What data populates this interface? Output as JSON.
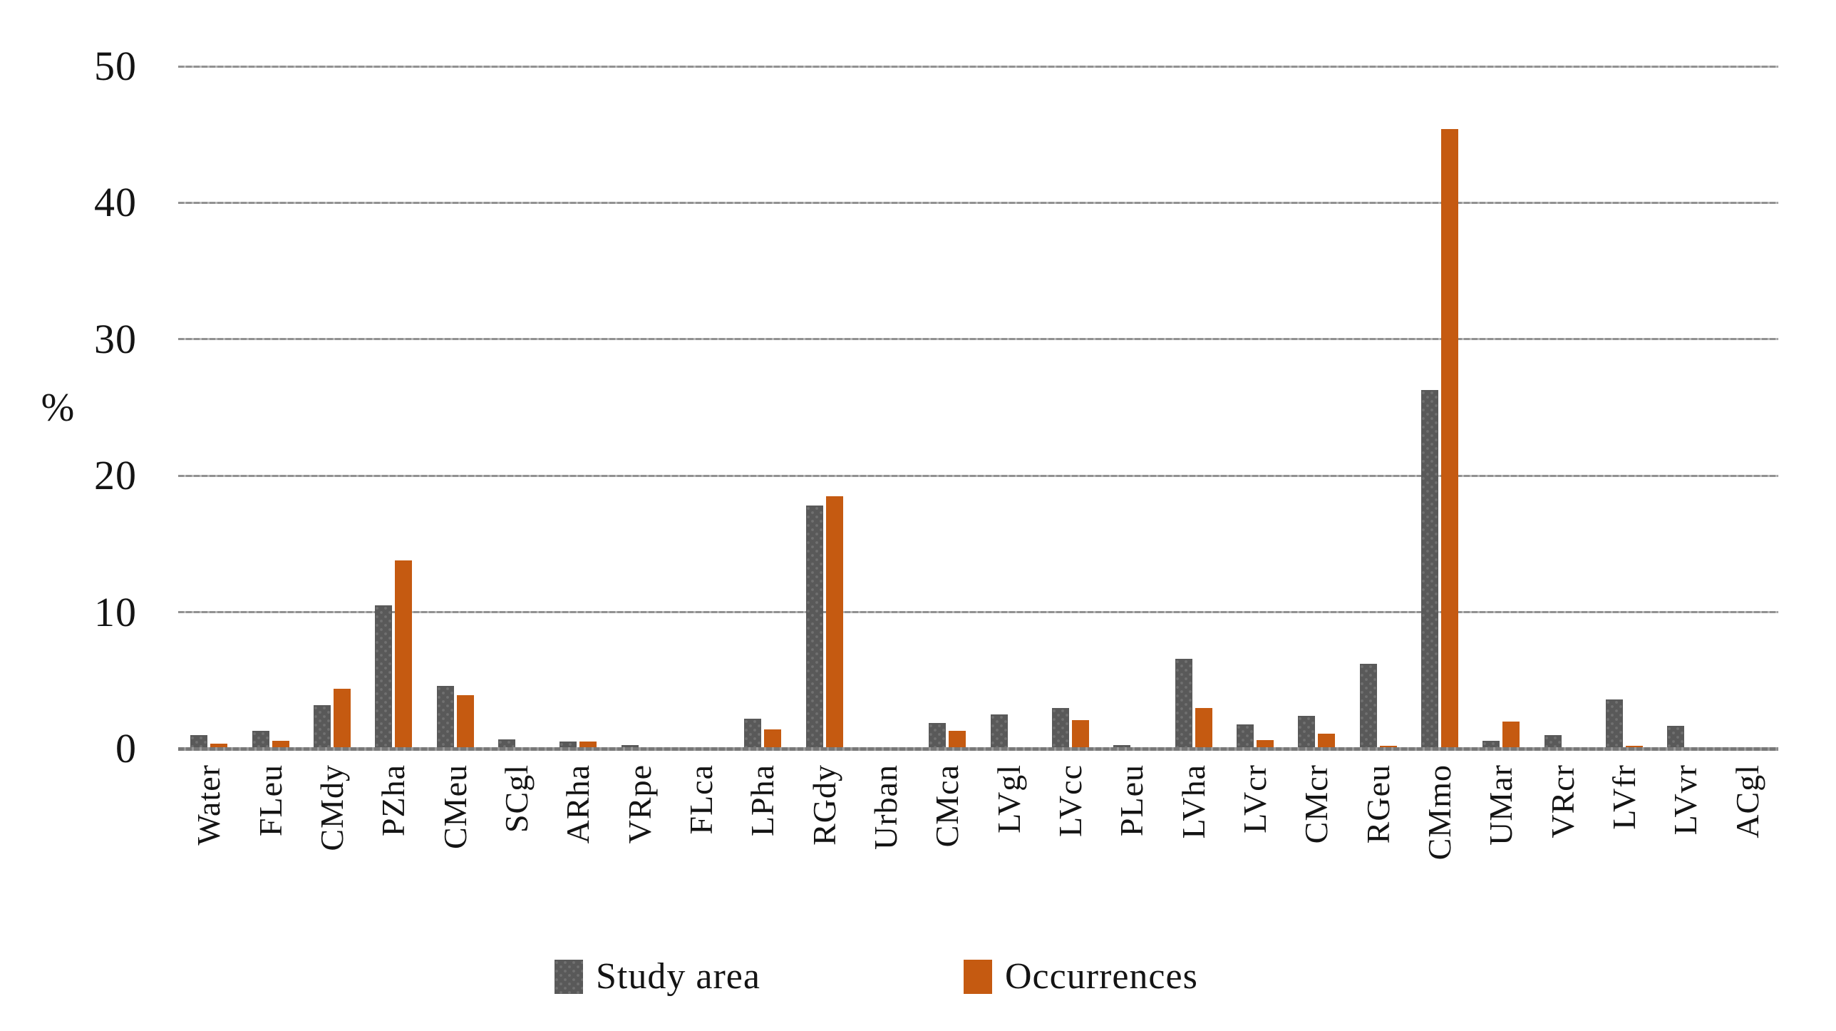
{
  "chart_data": {
    "type": "bar",
    "title": "",
    "ylabel": "%",
    "xlabel": "",
    "ylim": [
      0,
      50
    ],
    "yticks": [
      0,
      10,
      20,
      30,
      40,
      50
    ],
    "grid": "horizontal",
    "legend_position": "bottom",
    "categories": [
      "Water",
      "FLeu",
      "CMdy",
      "PZha",
      "CMeu",
      "SCgl",
      "ARha",
      "VRpe",
      "FLca",
      "LPha",
      "RGdy",
      "Urban",
      "CMca",
      "LVgl",
      "LVcc",
      "PLeu",
      "LVha",
      "LVcr",
      "CMcr",
      "RGeu",
      "CMmo",
      "UMar",
      "VRcr",
      "LVfr",
      "LVvr",
      "ACgl"
    ],
    "series": [
      {
        "name": "Study area",
        "color": "#595959",
        "values": [
          1.0,
          1.3,
          3.2,
          10.5,
          4.6,
          0.7,
          0.5,
          0.25,
          0,
          2.2,
          17.8,
          0,
          1.9,
          2.5,
          3.0,
          0.25,
          6.6,
          1.8,
          2.4,
          6.2,
          26.3,
          0.6,
          1.0,
          3.6,
          1.65,
          0
        ]
      },
      {
        "name": "Occurrences",
        "color": "#C55A11",
        "values": [
          0.35,
          0.6,
          4.4,
          13.8,
          3.9,
          0,
          0.5,
          0,
          0,
          1.4,
          18.5,
          0,
          1.3,
          0,
          2.1,
          0,
          3.0,
          0.65,
          1.1,
          0.2,
          45.4,
          2.0,
          0,
          0.2,
          0,
          0
        ]
      }
    ]
  }
}
